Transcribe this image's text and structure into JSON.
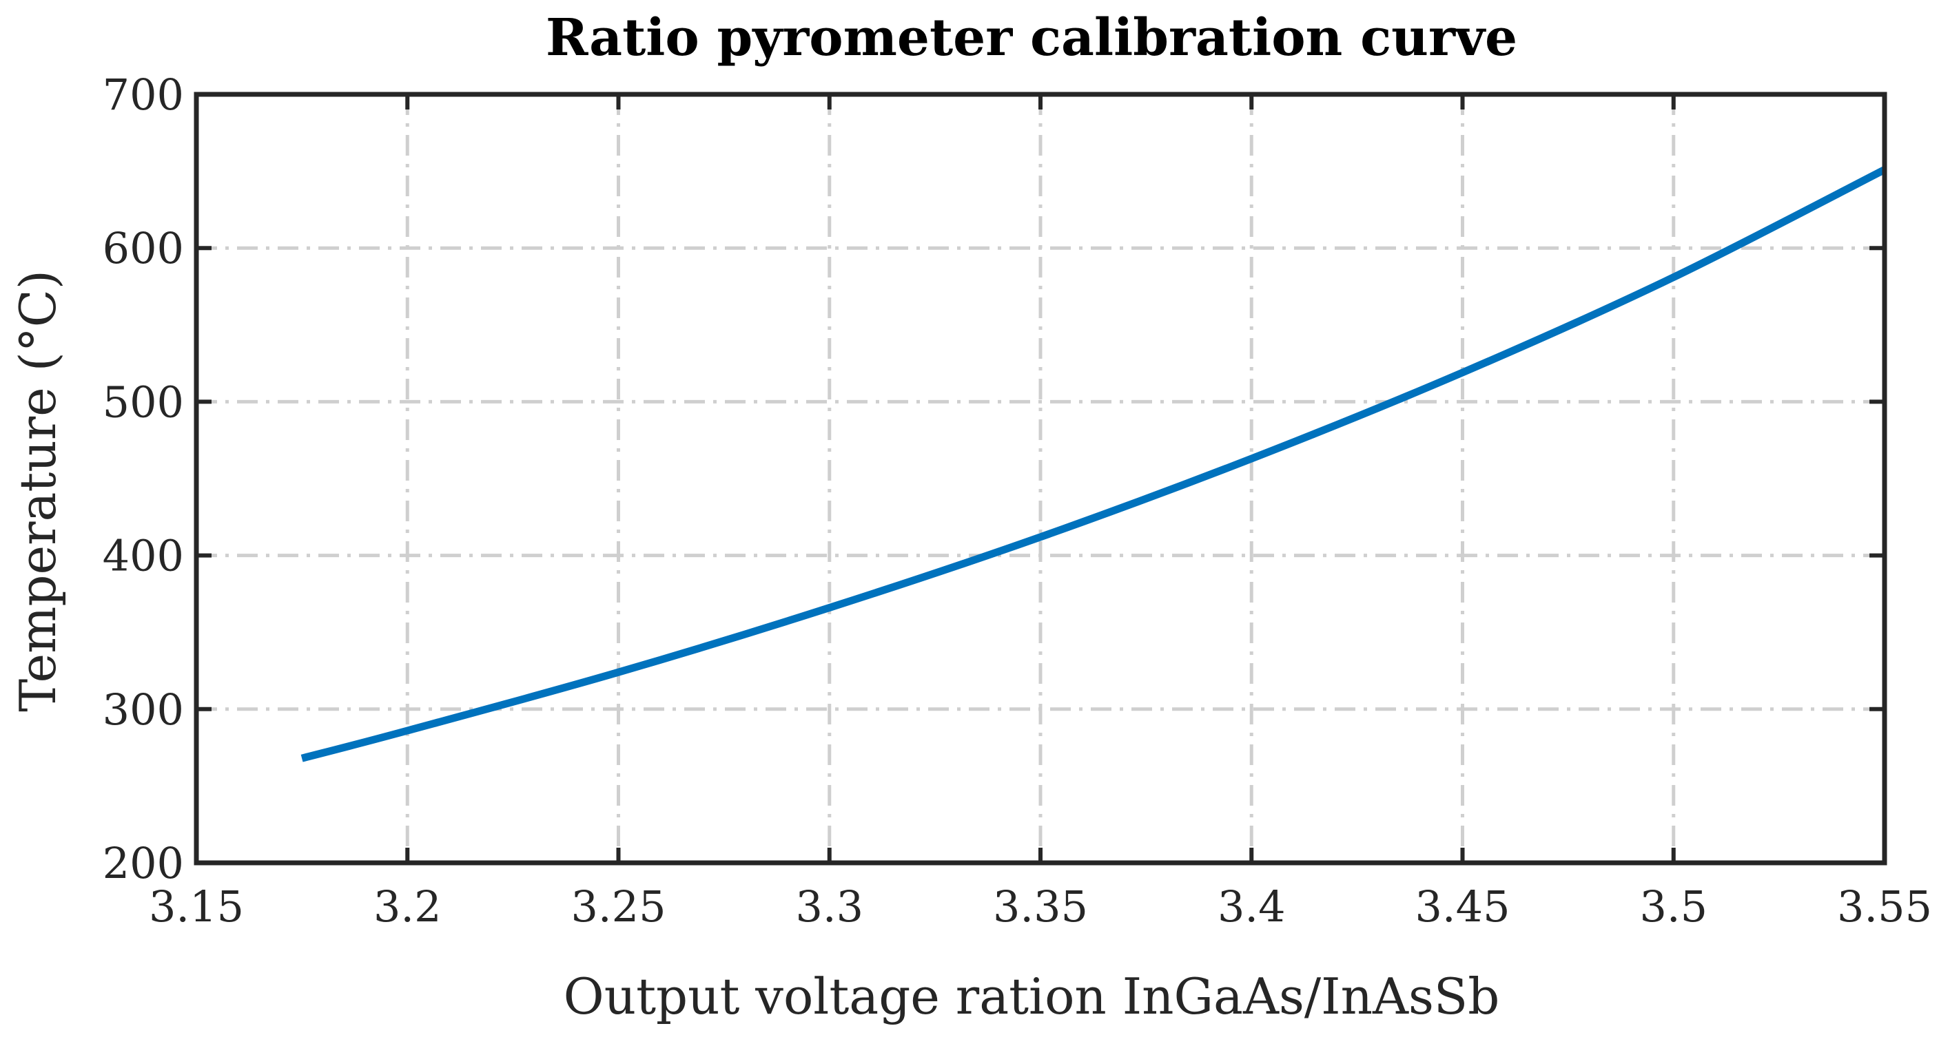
{
  "chart_data": {
    "type": "line",
    "title": "Ratio pyrometer calibration curve",
    "xlabel": "Output voltage ration InGaAs/InAsSb",
    "ylabel": "Temperature (°C)",
    "xlim": [
      3.15,
      3.55
    ],
    "ylim": [
      200,
      700
    ],
    "xticks": [
      3.15,
      3.2,
      3.25,
      3.3,
      3.35,
      3.4,
      3.45,
      3.5,
      3.55
    ],
    "xtick_labels": [
      "3.15",
      "3.2",
      "3.25",
      "3.3",
      "3.35",
      "3.4",
      "3.45",
      "3.5",
      "3.55"
    ],
    "yticks": [
      200,
      300,
      400,
      500,
      600,
      700
    ],
    "ytick_labels": [
      "200",
      "300",
      "400",
      "500",
      "600",
      "700"
    ],
    "grid": true,
    "legend": "none",
    "series": [
      {
        "color": "#0072BD",
        "x": [
          3.175,
          3.2,
          3.25,
          3.3,
          3.35,
          3.4,
          3.45,
          3.5,
          3.55
        ],
        "y": [
          268,
          286,
          324,
          366,
          412,
          463,
          519,
          581,
          651
        ]
      }
    ]
  }
}
